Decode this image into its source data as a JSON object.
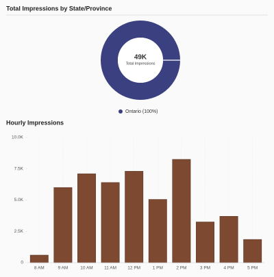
{
  "chart_data": [
    {
      "type": "pie",
      "title": "Total Impressions by State/Province",
      "center_text": "49K",
      "center_subtext": "Total Impressions",
      "categories": [
        "Ontario (100%)"
      ],
      "values": [
        100
      ],
      "colors": [
        "#3b4080"
      ],
      "donut": true,
      "legend": "bottom"
    },
    {
      "type": "bar",
      "title": "Hourly Impressions",
      "categories": [
        "8 AM",
        "9 AM",
        "10 AM",
        "11 AM",
        "12 PM",
        "1 PM",
        "2 PM",
        "3 PM",
        "4 PM",
        "5 PM"
      ],
      "values": [
        600,
        6000,
        7100,
        6400,
        7300,
        5050,
        8250,
        3250,
        3700,
        1850
      ],
      "color": "#7d4a31",
      "ylim": [
        0,
        10000
      ],
      "yticks": [
        0,
        {
          "value": 2500,
          "label": "2.5K"
        },
        {
          "value": 5000,
          "label": "5.0K"
        },
        {
          "value": 7500,
          "label": "7.5K"
        },
        {
          "value": 10000,
          "label": "10.0K"
        }
      ],
      "grid": true
    }
  ]
}
